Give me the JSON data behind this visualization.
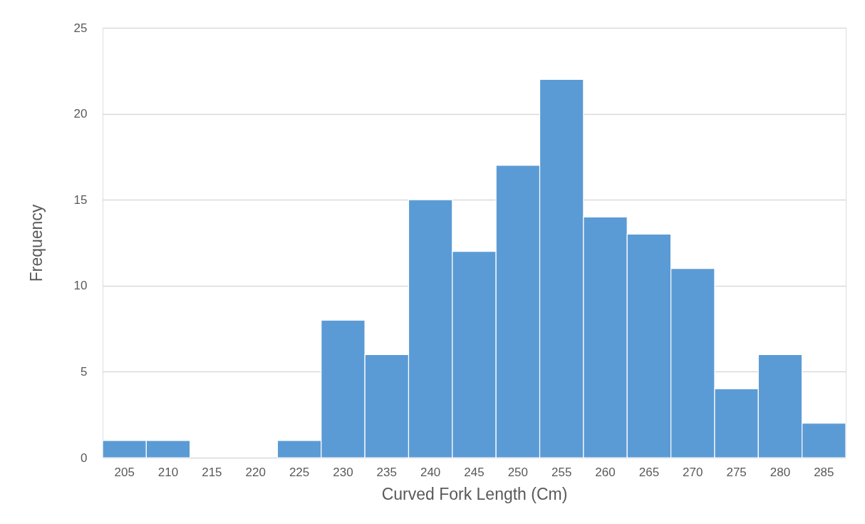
{
  "chart_data": {
    "type": "bar",
    "xlabel": "Curved Fork Length (Cm)",
    "ylabel": "Frequency",
    "categories": [
      "205",
      "210",
      "215",
      "220",
      "225",
      "230",
      "235",
      "240",
      "245",
      "250",
      "255",
      "260",
      "265",
      "270",
      "275",
      "280",
      "285"
    ],
    "values": [
      1,
      1,
      0,
      0,
      1,
      8,
      6,
      15,
      12,
      17,
      22,
      14,
      13,
      11,
      4,
      6,
      2
    ],
    "color": "#5b9bd5",
    "ylim": [
      0,
      25
    ],
    "yticks": [
      0,
      5,
      10,
      15,
      20,
      25
    ],
    "grid": "y"
  }
}
